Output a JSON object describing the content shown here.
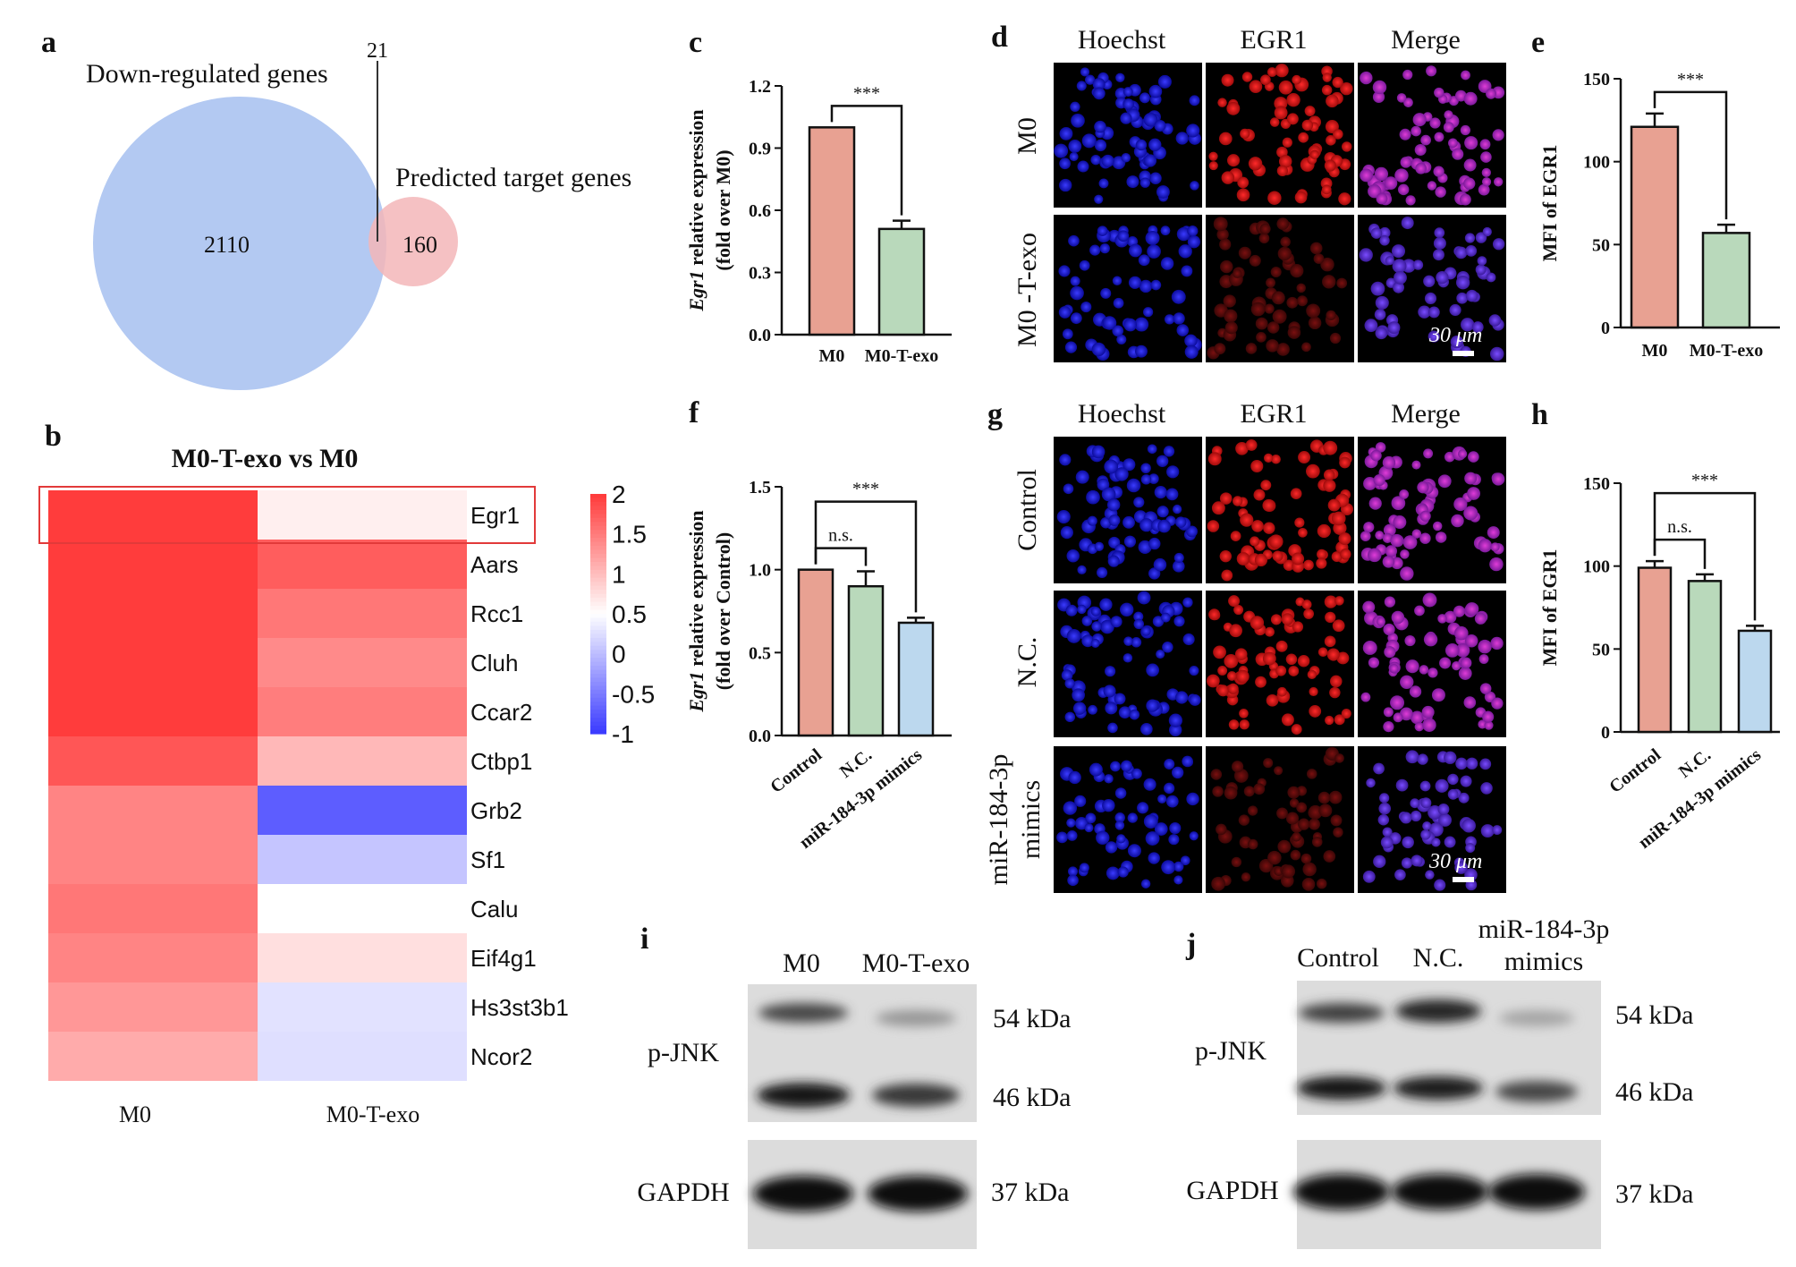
{
  "panels": {
    "a": "a",
    "b": "b",
    "c": "c",
    "d": "d",
    "e": "e",
    "f": "f",
    "g": "g",
    "h": "h",
    "i": "i",
    "j": "j"
  },
  "venn": {
    "left_label": "Down-regulated genes",
    "right_label": "Predicted target genes",
    "left_only": "2110",
    "overlap": "21",
    "right_only": "160",
    "left_color": "#b3c9f2",
    "right_color": "#f3b6b8"
  },
  "heatmap": {
    "title": "M0-T-exo vs M0",
    "columns": [
      "M0",
      "M0-T-exo"
    ],
    "rows": [
      "Egr1",
      "Aars",
      "Rcc1",
      "Cluh",
      "Ccar2",
      "Ctbp1",
      "Grb2",
      "Sf1",
      "Calu",
      "Eif4g1",
      "Hs3st3b1",
      "Ncor2"
    ],
    "values": [
      [
        2.0,
        0.62
      ],
      [
        2.0,
        1.75
      ],
      [
        2.0,
        1.55
      ],
      [
        2.0,
        1.4
      ],
      [
        2.0,
        1.5
      ],
      [
        1.8,
        1.05
      ],
      [
        1.45,
        -0.75
      ],
      [
        1.45,
        0.05
      ],
      [
        1.55,
        0.5
      ],
      [
        1.45,
        0.75
      ],
      [
        1.3,
        0.28
      ],
      [
        1.15,
        0.25
      ]
    ],
    "highlight_row": "Egr1",
    "colorbar_ticks": [
      "2",
      "1.5",
      "1",
      "0.5",
      "0",
      "-0.5",
      "-1"
    ],
    "colorbar_range": [
      -1,
      2
    ],
    "colors": {
      "low": "#1a1aff",
      "mid": "#ffffff",
      "high": "#ff1a1a"
    }
  },
  "microscopy": {
    "headers": [
      "Hoechst",
      "EGR1",
      "Merge"
    ],
    "d_rows": [
      "M0",
      "M0 -T-exo"
    ],
    "g_rows": [
      "Control",
      "N.C.",
      "miR-184-3p mimics"
    ],
    "scale_bar": "30 μm"
  },
  "blots": {
    "i_lanes": [
      "M0",
      "M0-T-exo"
    ],
    "j_lanes": [
      "Control",
      "N.C.",
      "miR-184-3p mimics"
    ],
    "labels": [
      "p-JNK",
      "GAPDH"
    ],
    "mw": [
      "54 kDa",
      "46 kDa",
      "37 kDa"
    ]
  },
  "chart_data": [
    {
      "panel": "c",
      "type": "bar",
      "categories": [
        "M0",
        "M0-T-exo"
      ],
      "values": [
        1.0,
        0.51
      ],
      "errors": [
        0.0,
        0.04
      ],
      "colors": [
        "#e8a192",
        "#b9d9bb"
      ],
      "ylabel": "Egr1 relative expression (fold over M0)",
      "ylim": [
        0,
        1.2
      ],
      "yticks": [
        "0.0",
        "0.3",
        "0.6",
        "0.9",
        "1.2"
      ],
      "significance": [
        {
          "between": [
            0,
            1
          ],
          "label": "***"
        }
      ]
    },
    {
      "panel": "e",
      "type": "bar",
      "categories": [
        "M0",
        "M0-T-exo"
      ],
      "values": [
        121,
        57
      ],
      "errors": [
        8,
        5
      ],
      "colors": [
        "#e8a192",
        "#b9d9bb"
      ],
      "ylabel": "MFI of EGR1",
      "ylim": [
        0,
        150
      ],
      "yticks": [
        "0",
        "50",
        "100",
        "150"
      ],
      "significance": [
        {
          "between": [
            0,
            1
          ],
          "label": "***"
        }
      ]
    },
    {
      "panel": "f",
      "type": "bar",
      "categories": [
        "Control",
        "N.C.",
        "miR-184-3p mimics"
      ],
      "values": [
        1.0,
        0.9,
        0.68
      ],
      "errors": [
        0.0,
        0.09,
        0.03
      ],
      "colors": [
        "#e8a192",
        "#b9d9bb",
        "#bcd8ee"
      ],
      "ylabel": "Egr1 relative expression (fold over Control)",
      "ylim": [
        0,
        1.5
      ],
      "yticks": [
        "0.0",
        "0.5",
        "1.0",
        "1.5"
      ],
      "significance": [
        {
          "between": [
            0,
            1
          ],
          "label": "n.s."
        },
        {
          "between": [
            0,
            2
          ],
          "label": "***"
        }
      ]
    },
    {
      "panel": "h",
      "type": "bar",
      "categories": [
        "Control",
        "N.C.",
        "miR-184-3p mimics"
      ],
      "values": [
        99,
        91,
        61
      ],
      "errors": [
        4,
        4,
        3
      ],
      "colors": [
        "#e8a192",
        "#b9d9bb",
        "#bcd8ee"
      ],
      "ylabel": "MFI of EGR1",
      "ylim": [
        0,
        150
      ],
      "yticks": [
        "0",
        "50",
        "100",
        "150"
      ],
      "significance": [
        {
          "between": [
            0,
            1
          ],
          "label": "n.s."
        },
        {
          "between": [
            0,
            2
          ],
          "label": "***"
        }
      ]
    }
  ]
}
